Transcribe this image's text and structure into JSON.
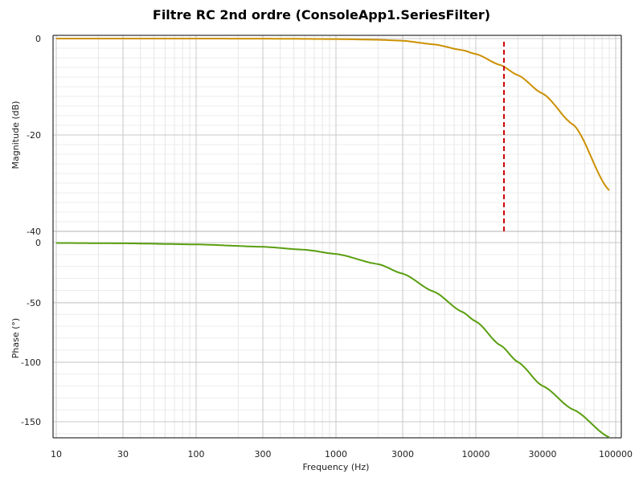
{
  "chart_data": {
    "type": "line",
    "title": "Filtre RC 2nd ordre (ConsoleApp1.SeriesFilter)",
    "xlabel": "Frequency (Hz)",
    "x_scale": "log",
    "xlim": [
      10,
      100000
    ],
    "x_ticks": [
      10,
      30,
      100,
      300,
      1000,
      3000,
      10000,
      30000,
      100000
    ],
    "x_tick_labels": [
      "10",
      "30",
      "100",
      "300",
      "1000",
      "3000",
      "10000",
      "30000",
      "100000"
    ],
    "grid": true,
    "panels": [
      {
        "ylabel": "Magnitude (dB)",
        "ylim": [
          -40,
          0
        ],
        "y_ticks": [
          0,
          -20,
          -40
        ],
        "y_tick_labels": [
          "0",
          "-20",
          "-40"
        ],
        "series": [
          {
            "color": "#cc9000",
            "x": [
              10,
              100,
              300,
              1000,
              2000,
              3000,
              5000,
              8000,
              10000,
              15000,
              20000,
              30000,
              50000,
              90000
            ],
            "y": [
              0,
              0,
              -0.02,
              -0.1,
              -0.25,
              -0.45,
              -1.2,
              -2.4,
              -3.2,
              -5.5,
              -7.6,
              -11.4,
              -17.9,
              -31.5
            ]
          }
        ],
        "markers": [
          {
            "type": "vline",
            "x": 15900,
            "y_range": [
              -3,
              -40
            ],
            "color": "#cc0000",
            "style": "dashed"
          }
        ]
      },
      {
        "ylabel": "Phase (°)",
        "ylim": [
          -160,
          0
        ],
        "y_ticks": [
          0,
          -50,
          -100,
          -150
        ],
        "y_tick_labels": [
          "0",
          "-50",
          "-100",
          "-150"
        ],
        "series": [
          {
            "color": "#5a9e10",
            "x": [
              10,
              30,
              100,
              300,
              600,
              1000,
              2000,
              3000,
              5000,
              8000,
              10000,
              15000,
              20000,
              30000,
              50000,
              90000
            ],
            "y": [
              -0.3,
              -0.6,
              -1.5,
              -3.5,
              -6,
              -9.5,
              -18,
              -26,
              -41,
              -58,
              -66,
              -86,
              -100,
              -120,
              -140,
              -163
            ]
          }
        ]
      }
    ]
  }
}
